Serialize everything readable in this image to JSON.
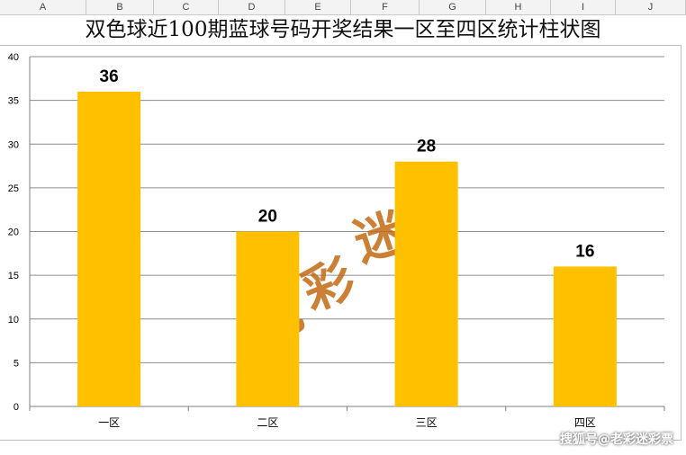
{
  "columns": [
    "A",
    "B",
    "C",
    "D",
    "E",
    "F",
    "G",
    "H",
    "I",
    "J"
  ],
  "chart_data": {
    "type": "bar",
    "title": "双色球近100期蓝球号码开奖结果一区至四区统计柱状图",
    "categories": [
      "一区",
      "二区",
      "三区",
      "四区"
    ],
    "values": [
      36,
      20,
      28,
      16
    ],
    "ylim": [
      0,
      40
    ],
    "yticks": [
      0,
      5,
      10,
      15,
      20,
      25,
      30,
      35,
      40
    ],
    "grid": true,
    "bar_color": "#FFC000",
    "xlabel": "",
    "ylabel": ""
  },
  "logo_text": "老彩迷",
  "watermark_text": "搜狐号@老彩迷彩票"
}
